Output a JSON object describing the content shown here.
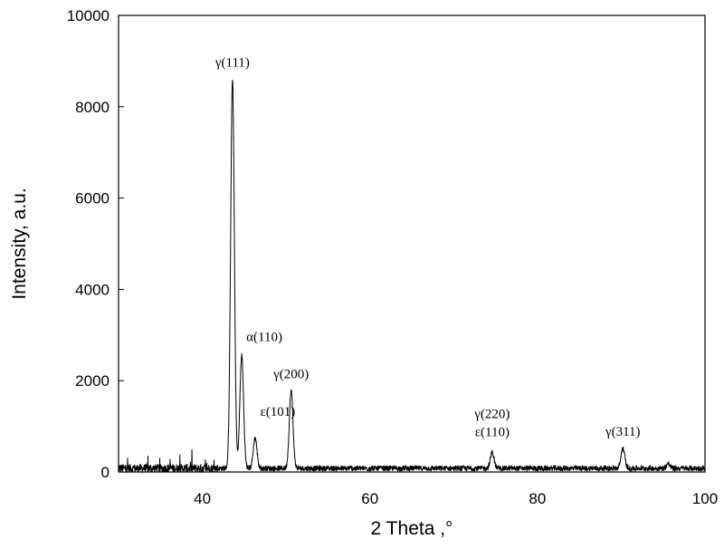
{
  "chart_data": {
    "type": "line",
    "title": "",
    "xlabel": "2 Theta ,°",
    "ylabel": "Intensity, a.u.",
    "xlim": [
      30,
      100
    ],
    "ylim": [
      0,
      10000
    ],
    "x_ticks": [
      40,
      60,
      80,
      100
    ],
    "y_ticks": [
      0,
      2000,
      4000,
      6000,
      8000,
      10000
    ],
    "grid": false,
    "legend": "none",
    "line_color": "#000000",
    "baseline": 80,
    "noise": 120,
    "peaks": [
      {
        "x": 43.6,
        "y": 8600,
        "label": "γ(111)"
      },
      {
        "x": 44.7,
        "y": 2550,
        "label": "α(110)"
      },
      {
        "x": 46.3,
        "y": 750,
        "label": "ε(101)"
      },
      {
        "x": 50.6,
        "y": 1780,
        "label": "γ(200)"
      },
      {
        "x": 74.6,
        "y": 430,
        "label": "γ(220)",
        "label2": "ε(110)"
      },
      {
        "x": 90.2,
        "y": 520,
        "label": "γ(311)"
      },
      {
        "x": 95.6,
        "y": 180,
        "label": ""
      }
    ]
  }
}
